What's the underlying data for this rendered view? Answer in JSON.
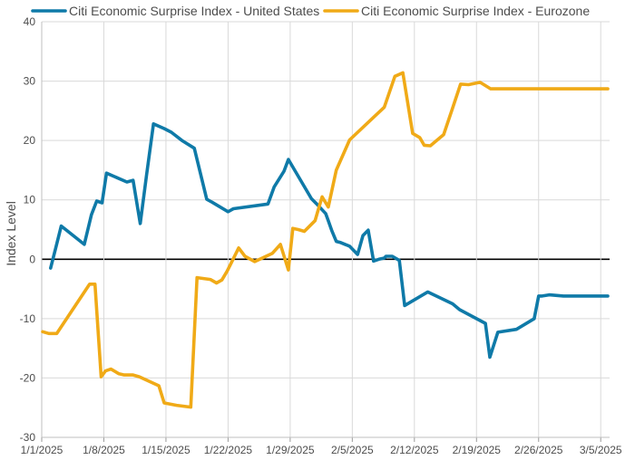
{
  "chart_data": {
    "type": "line",
    "title": "",
    "xlabel": "",
    "ylabel": "Index Level",
    "ylim": [
      -30,
      40
    ],
    "y_ticks": [
      -30,
      -20,
      -10,
      0,
      10,
      20,
      30,
      40
    ],
    "x_range_days": [
      0,
      64
    ],
    "x_ticks": [
      {
        "day": 0,
        "label": "1/1/2025"
      },
      {
        "day": 7,
        "label": "1/8/2025"
      },
      {
        "day": 14,
        "label": "1/15/2025"
      },
      {
        "day": 21,
        "label": "1/22/2025"
      },
      {
        "day": 28,
        "label": "1/29/2025"
      },
      {
        "day": 35,
        "label": "2/5/2025"
      },
      {
        "day": 42,
        "label": "2/12/2025"
      },
      {
        "day": 49,
        "label": "2/19/2025"
      },
      {
        "day": 56,
        "label": "2/26/2025"
      },
      {
        "day": 63,
        "label": "3/5/2025"
      }
    ],
    "grid": true,
    "legend_position": "top",
    "series": [
      {
        "name": "Citi Economic Surprise Index - United States",
        "color": "#0f7aa8",
        "x": [
          1,
          1.6,
          2.2,
          4.8,
          5.6,
          6.2,
          6.8,
          7.3,
          9.6,
          10.3,
          11.1,
          11.8,
          12.6,
          13.8,
          14.6,
          15.8,
          17.2,
          18.6,
          19.2,
          21.0,
          21.6,
          25.5,
          26.2,
          27.3,
          27.8,
          30.4,
          31.0,
          32.0,
          32.3,
          32.7,
          33.2,
          33.7,
          34.2,
          34.7,
          35.6,
          36.2,
          36.8,
          37.4,
          38.0,
          38.6,
          38.8,
          39.5,
          40.3,
          40.9,
          43.5,
          46.3,
          47.1,
          50.0,
          50.5,
          51.4,
          53.5,
          55.5,
          56.0,
          56.4,
          57.2,
          58.8,
          59.8,
          60.8,
          61.2,
          62.0,
          62.7,
          63.4,
          63.8
        ],
        "y": [
          -1.5,
          2.0,
          5.6,
          2.5,
          7.5,
          9.8,
          9.5,
          14.5,
          13.0,
          13.3,
          6.0,
          14.0,
          22.8,
          22.0,
          21.4,
          20.0,
          18.7,
          10.1,
          9.6,
          8.0,
          8.5,
          9.3,
          12.2,
          14.8,
          16.8,
          10.2,
          9.3,
          7.7,
          6.5,
          4.8,
          3.0,
          2.8,
          2.5,
          2.2,
          0.8,
          4.0,
          4.9,
          -0.3,
          0.0,
          0.2,
          0.5,
          0.5,
          -0.2,
          -7.8,
          -5.5,
          -7.5,
          -8.5,
          -10.8,
          -16.5,
          -12.3,
          -11.8,
          -10.0,
          -6.2,
          -6.2,
          -6.0,
          -6.2,
          -6.2,
          -6.2,
          -6.2,
          -6.2,
          -6.2,
          -6.2,
          -6.2
        ],
        "comment": "values on x in days since 1/1/2025"
      },
      {
        "name": "Citi Economic Surprise Index - Eurozone",
        "color": "#f0aa17",
        "x": [
          0.1,
          0.8,
          1.7,
          5.4,
          6.0,
          6.7,
          7.2,
          7.8,
          8.7,
          9.3,
          10.3,
          11.0,
          13.2,
          13.8,
          15.2,
          16.8,
          17.5,
          19.0,
          19.7,
          20.3,
          20.9,
          22.2,
          22.9,
          24.0,
          26.0,
          26.9,
          27.8,
          28.3,
          28.9,
          29.6,
          30.8,
          31.1,
          31.6,
          32.3,
          33.2,
          34.7,
          38.6,
          39.8,
          40.7,
          41.8,
          42.6,
          43.1,
          43.8,
          45.3,
          46.2,
          47.2,
          48.1,
          49.4,
          50.6,
          52.0,
          53.0,
          54.5,
          55.9,
          56.7,
          58.0,
          59.0,
          59.6,
          60.3,
          61.0,
          61.4,
          62.0,
          62.6,
          63.8
        ],
        "y": [
          -12.2,
          -12.5,
          -12.5,
          -4.2,
          -4.2,
          -19.8,
          -18.8,
          -18.5,
          -19.3,
          -19.5,
          -19.5,
          -19.8,
          -21.3,
          -24.2,
          -24.6,
          -24.9,
          -3.1,
          -3.4,
          -4.0,
          -3.5,
          -2.0,
          1.9,
          0.5,
          -0.4,
          1.0,
          2.5,
          -1.8,
          5.2,
          5.0,
          4.7,
          6.5,
          8.0,
          10.5,
          8.8,
          15.0,
          20.1,
          25.6,
          30.8,
          31.4,
          21.2,
          20.5,
          19.2,
          19.1,
          21.0,
          25.0,
          29.5,
          29.4,
          29.8,
          28.7,
          28.7,
          28.7,
          28.7,
          28.7,
          28.7,
          28.7,
          28.7,
          28.7,
          28.7,
          28.7,
          28.7,
          28.7,
          28.7,
          28.7
        ]
      }
    ]
  }
}
